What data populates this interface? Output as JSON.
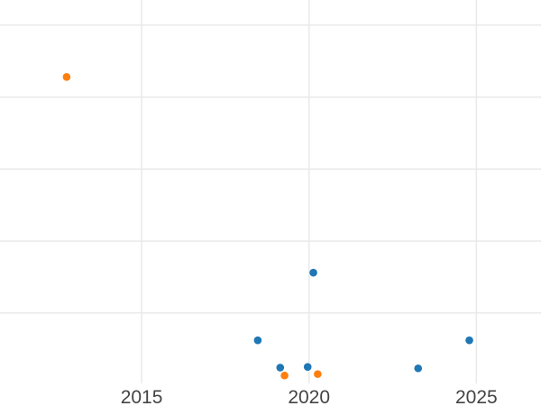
{
  "chart_data": {
    "type": "scatter",
    "title": "",
    "xlabel": "",
    "ylabel": "",
    "legend": "none",
    "grid": true,
    "background_color": "#ffffff",
    "grid_color": "#e9e9e9",
    "tick_label_color": "#444444",
    "marker_radius_px": 4.3,
    "x_range": [
      2010.77,
      2026.93
    ],
    "y_range": [
      0.02,
      5.35
    ],
    "y_units": "gridline units; y-axis tick labels cropped out of view",
    "x_ticks": [
      {
        "value": 2015,
        "label": "2015"
      },
      {
        "value": 2020,
        "label": "2020"
      },
      {
        "value": 2025,
        "label": "2025"
      }
    ],
    "y_gridlines": [
      1,
      2,
      3,
      4,
      5
    ],
    "series": [
      {
        "name": "blue",
        "color": "#1f77b4",
        "points": [
          {
            "x": 2018.47,
            "y": 0.62
          },
          {
            "x": 2019.14,
            "y": 0.24
          },
          {
            "x": 2019.96,
            "y": 0.25
          },
          {
            "x": 2020.13,
            "y": 1.56
          },
          {
            "x": 2023.26,
            "y": 0.23
          },
          {
            "x": 2024.79,
            "y": 0.62
          }
        ]
      },
      {
        "name": "orange",
        "color": "#ff7f0e",
        "points": [
          {
            "x": 2012.76,
            "y": 4.28
          },
          {
            "x": 2019.27,
            "y": 0.13
          },
          {
            "x": 2020.26,
            "y": 0.15
          }
        ]
      }
    ]
  }
}
